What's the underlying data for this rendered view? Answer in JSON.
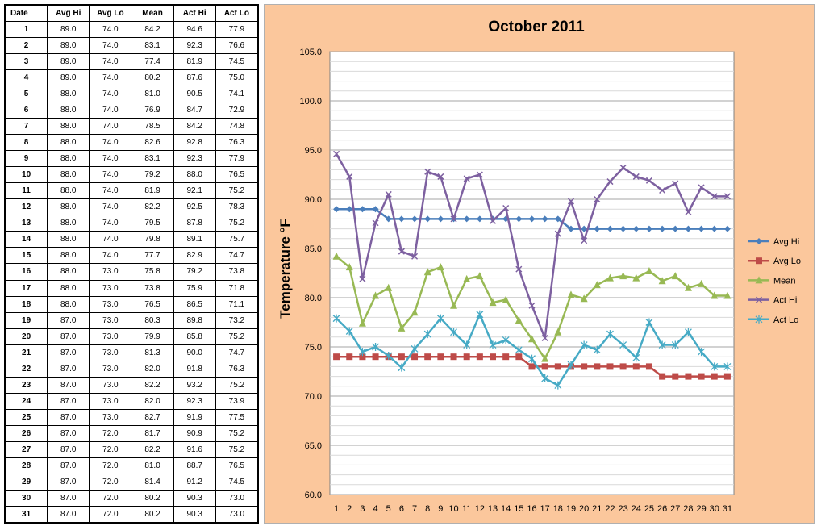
{
  "table": {
    "headers": [
      "Date",
      "Avg Hi",
      "Avg Lo",
      "Mean",
      "Act Hi",
      "Act Lo"
    ],
    "rows": [
      [
        "1",
        "89.0",
        "74.0",
        "84.2",
        "94.6",
        "77.9"
      ],
      [
        "2",
        "89.0",
        "74.0",
        "83.1",
        "92.3",
        "76.6"
      ],
      [
        "3",
        "89.0",
        "74.0",
        "77.4",
        "81.9",
        "74.5"
      ],
      [
        "4",
        "89.0",
        "74.0",
        "80.2",
        "87.6",
        "75.0"
      ],
      [
        "5",
        "88.0",
        "74.0",
        "81.0",
        "90.5",
        "74.1"
      ],
      [
        "6",
        "88.0",
        "74.0",
        "76.9",
        "84.7",
        "72.9"
      ],
      [
        "7",
        "88.0",
        "74.0",
        "78.5",
        "84.2",
        "74.8"
      ],
      [
        "8",
        "88.0",
        "74.0",
        "82.6",
        "92.8",
        "76.3"
      ],
      [
        "9",
        "88.0",
        "74.0",
        "83.1",
        "92.3",
        "77.9"
      ],
      [
        "10",
        "88.0",
        "74.0",
        "79.2",
        "88.0",
        "76.5"
      ],
      [
        "11",
        "88.0",
        "74.0",
        "81.9",
        "92.1",
        "75.2"
      ],
      [
        "12",
        "88.0",
        "74.0",
        "82.2",
        "92.5",
        "78.3"
      ],
      [
        "13",
        "88.0",
        "74.0",
        "79.5",
        "87.8",
        "75.2"
      ],
      [
        "14",
        "88.0",
        "74.0",
        "79.8",
        "89.1",
        "75.7"
      ],
      [
        "15",
        "88.0",
        "74.0",
        "77.7",
        "82.9",
        "74.7"
      ],
      [
        "16",
        "88.0",
        "73.0",
        "75.8",
        "79.2",
        "73.8"
      ],
      [
        "17",
        "88.0",
        "73.0",
        "73.8",
        "75.9",
        "71.8"
      ],
      [
        "18",
        "88.0",
        "73.0",
        "76.5",
        "86.5",
        "71.1"
      ],
      [
        "19",
        "87.0",
        "73.0",
        "80.3",
        "89.8",
        "73.2"
      ],
      [
        "20",
        "87.0",
        "73.0",
        "79.9",
        "85.8",
        "75.2"
      ],
      [
        "21",
        "87.0",
        "73.0",
        "81.3",
        "90.0",
        "74.7"
      ],
      [
        "22",
        "87.0",
        "73.0",
        "82.0",
        "91.8",
        "76.3"
      ],
      [
        "23",
        "87.0",
        "73.0",
        "82.2",
        "93.2",
        "75.2"
      ],
      [
        "24",
        "87.0",
        "73.0",
        "82.0",
        "92.3",
        "73.9"
      ],
      [
        "25",
        "87.0",
        "73.0",
        "82.7",
        "91.9",
        "77.5"
      ],
      [
        "26",
        "87.0",
        "72.0",
        "81.7",
        "90.9",
        "75.2"
      ],
      [
        "27",
        "87.0",
        "72.0",
        "82.2",
        "91.6",
        "75.2"
      ],
      [
        "28",
        "87.0",
        "72.0",
        "81.0",
        "88.7",
        "76.5"
      ],
      [
        "29",
        "87.0",
        "72.0",
        "81.4",
        "91.2",
        "74.5"
      ],
      [
        "30",
        "87.0",
        "72.0",
        "80.2",
        "90.3",
        "73.0"
      ],
      [
        "31",
        "87.0",
        "72.0",
        "80.2",
        "90.3",
        "73.0"
      ]
    ]
  },
  "chart_data": {
    "type": "line",
    "title": "October 2011",
    "xlabel": "",
    "ylabel": "Temperature °F",
    "x": [
      1,
      2,
      3,
      4,
      5,
      6,
      7,
      8,
      9,
      10,
      11,
      12,
      13,
      14,
      15,
      16,
      17,
      18,
      19,
      20,
      21,
      22,
      23,
      24,
      25,
      26,
      27,
      28,
      29,
      30,
      31
    ],
    "ylim": [
      60,
      105
    ],
    "ytick_step": 5,
    "grid": "horizontal",
    "legend_placement": "right",
    "background_color": "#fbc79c",
    "series": [
      {
        "name": "Avg Hi",
        "color": "#4a7ebb",
        "marker": "diamond",
        "values": [
          89,
          89,
          89,
          89,
          88,
          88,
          88,
          88,
          88,
          88,
          88,
          88,
          88,
          88,
          88,
          88,
          88,
          88,
          87,
          87,
          87,
          87,
          87,
          87,
          87,
          87,
          87,
          87,
          87,
          87,
          87
        ]
      },
      {
        "name": "Avg Lo",
        "color": "#be4b48",
        "marker": "square",
        "values": [
          74,
          74,
          74,
          74,
          74,
          74,
          74,
          74,
          74,
          74,
          74,
          74,
          74,
          74,
          74,
          73,
          73,
          73,
          73,
          73,
          73,
          73,
          73,
          73,
          73,
          72,
          72,
          72,
          72,
          72,
          72
        ]
      },
      {
        "name": "Mean",
        "color": "#98b954",
        "marker": "triangle",
        "values": [
          84.2,
          83.1,
          77.4,
          80.2,
          81.0,
          76.9,
          78.5,
          82.6,
          83.1,
          79.2,
          81.9,
          82.2,
          79.5,
          79.8,
          77.7,
          75.8,
          73.8,
          76.5,
          80.3,
          79.9,
          81.3,
          82.0,
          82.2,
          82.0,
          82.7,
          81.7,
          82.2,
          81.0,
          81.4,
          80.2,
          80.2
        ]
      },
      {
        "name": "Act Hi",
        "color": "#7d60a0",
        "marker": "x",
        "values": [
          94.6,
          92.3,
          81.9,
          87.6,
          90.5,
          84.7,
          84.2,
          92.8,
          92.3,
          88.0,
          92.1,
          92.5,
          87.8,
          89.1,
          82.9,
          79.2,
          75.9,
          86.5,
          89.8,
          85.8,
          90.0,
          91.8,
          93.2,
          92.3,
          91.9,
          90.9,
          91.6,
          88.7,
          91.2,
          90.3,
          90.3
        ]
      },
      {
        "name": "Act Lo",
        "color": "#46aac5",
        "marker": "star",
        "values": [
          77.9,
          76.6,
          74.5,
          75.0,
          74.1,
          72.9,
          74.8,
          76.3,
          77.9,
          76.5,
          75.2,
          78.3,
          75.2,
          75.7,
          74.7,
          73.8,
          71.8,
          71.1,
          73.2,
          75.2,
          74.7,
          76.3,
          75.2,
          73.9,
          77.5,
          75.2,
          75.2,
          76.5,
          74.5,
          73.0,
          73.0
        ]
      }
    ]
  }
}
